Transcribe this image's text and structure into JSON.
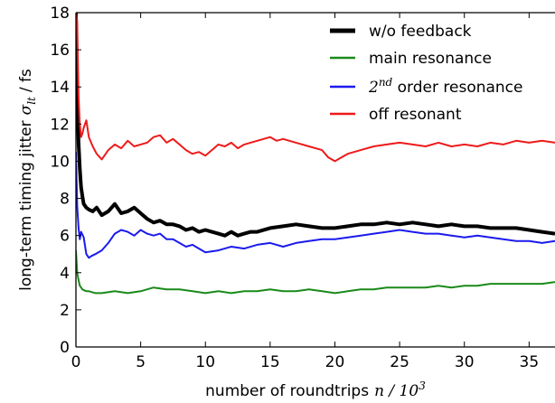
{
  "chart_data": {
    "type": "line",
    "xlabel": "number of roundtrips",
    "xlabel_math": "n / 10",
    "xlabel_exp": "3",
    "ylabel": "long-term timing jitter",
    "ylabel_math": "σ",
    "ylabel_sub": "lt",
    "ylabel_unit": "/ fs",
    "xlim": [
      0,
      37
    ],
    "ylim": [
      0,
      18
    ],
    "xticks": [
      0,
      5,
      10,
      15,
      20,
      25,
      30,
      35
    ],
    "yticks": [
      0,
      2,
      4,
      6,
      8,
      10,
      12,
      14,
      16,
      18
    ],
    "legend_position": "top-right",
    "series": [
      {
        "name": "w/o feedback",
        "color": "#000000",
        "width": 4,
        "x": [
          0,
          0.1,
          0.2,
          0.3,
          0.4,
          0.5,
          0.6,
          0.8,
          1.0,
          1.3,
          1.6,
          2,
          2.5,
          3,
          3.5,
          4,
          4.5,
          5,
          5.5,
          6,
          6.5,
          7,
          7.5,
          8,
          8.5,
          9,
          9.5,
          10,
          10.5,
          11,
          11.5,
          12,
          12.5,
          13,
          13.5,
          14,
          15,
          16,
          17,
          18,
          19,
          20,
          21,
          22,
          23,
          24,
          25,
          26,
          27,
          28,
          29,
          30,
          31,
          32,
          33,
          34,
          35,
          36,
          37
        ],
        "y": [
          18,
          13.5,
          11,
          9.6,
          8.6,
          8.1,
          7.7,
          7.5,
          7.4,
          7.3,
          7.5,
          7.1,
          7.3,
          7.7,
          7.2,
          7.3,
          7.5,
          7.2,
          6.9,
          6.7,
          6.8,
          6.6,
          6.6,
          6.5,
          6.3,
          6.4,
          6.2,
          6.3,
          6.2,
          6.1,
          6.0,
          6.2,
          6.0,
          6.1,
          6.2,
          6.2,
          6.4,
          6.5,
          6.6,
          6.5,
          6.4,
          6.4,
          6.5,
          6.6,
          6.6,
          6.7,
          6.6,
          6.7,
          6.6,
          6.5,
          6.6,
          6.5,
          6.5,
          6.4,
          6.4,
          6.4,
          6.3,
          6.2,
          6.1
        ]
      },
      {
        "name": "main resonance",
        "color": "#1a8a1a",
        "width": 2,
        "x": [
          0,
          0.1,
          0.2,
          0.3,
          0.5,
          0.8,
          1,
          1.5,
          2,
          3,
          4,
          5,
          6,
          7,
          8,
          9,
          10,
          11,
          12,
          13,
          14,
          15,
          16,
          17,
          18,
          19,
          20,
          21,
          22,
          23,
          24,
          25,
          26,
          27,
          28,
          29,
          30,
          31,
          32,
          33,
          34,
          35,
          36,
          37
        ],
        "y": [
          5.2,
          4.0,
          3.6,
          3.3,
          3.1,
          3.0,
          3.0,
          2.9,
          2.9,
          3.0,
          2.9,
          3.0,
          3.2,
          3.1,
          3.1,
          3.0,
          2.9,
          3.0,
          2.9,
          3.0,
          3.0,
          3.1,
          3.0,
          3.0,
          3.1,
          3.0,
          2.9,
          3.0,
          3.1,
          3.1,
          3.2,
          3.2,
          3.2,
          3.2,
          3.3,
          3.2,
          3.3,
          3.3,
          3.4,
          3.4,
          3.4,
          3.4,
          3.4,
          3.5
        ]
      },
      {
        "name": "2nd order resonance",
        "color": "#1a1aee",
        "width": 2,
        "x": [
          0,
          0.1,
          0.2,
          0.3,
          0.4,
          0.6,
          0.8,
          1.0,
          1.2,
          1.5,
          2,
          2.5,
          3,
          3.5,
          4,
          4.5,
          5,
          5.5,
          6,
          6.5,
          7,
          7.5,
          8,
          8.5,
          9,
          9.5,
          10,
          11,
          12,
          13,
          14,
          15,
          16,
          17,
          18,
          19,
          20,
          21,
          22,
          23,
          24,
          25,
          26,
          27,
          28,
          29,
          30,
          31,
          32,
          33,
          34,
          35,
          36,
          37
        ],
        "y": [
          10.5,
          7.6,
          6.4,
          5.8,
          6.2,
          5.9,
          5.0,
          4.8,
          4.9,
          5.0,
          5.2,
          5.6,
          6.1,
          6.3,
          6.2,
          6.0,
          6.3,
          6.1,
          6.0,
          6.1,
          5.8,
          5.8,
          5.6,
          5.4,
          5.5,
          5.3,
          5.1,
          5.2,
          5.4,
          5.3,
          5.5,
          5.6,
          5.4,
          5.6,
          5.7,
          5.8,
          5.8,
          5.9,
          6.0,
          6.1,
          6.2,
          6.3,
          6.2,
          6.1,
          6.1,
          6.0,
          5.9,
          6.0,
          5.9,
          5.8,
          5.7,
          5.7,
          5.6,
          5.7
        ]
      },
      {
        "name": "off resonant",
        "color": "#ee1a1a",
        "width": 2,
        "x": [
          0,
          0.1,
          0.2,
          0.3,
          0.4,
          0.5,
          0.6,
          0.8,
          1.0,
          1.3,
          1.6,
          2,
          2.5,
          3,
          3.5,
          4,
          4.5,
          5,
          5.5,
          6,
          6.5,
          7,
          7.5,
          8,
          8.5,
          9,
          9.5,
          10,
          10.5,
          11,
          11.5,
          12,
          12.5,
          13,
          14,
          15,
          15.5,
          16,
          17,
          18,
          19,
          19.5,
          20,
          20.5,
          21,
          22,
          23,
          24,
          25,
          26,
          27,
          28,
          29,
          30,
          31,
          32,
          33,
          34,
          35,
          36,
          37
        ],
        "y": [
          18,
          17.5,
          13.5,
          12.0,
          11.3,
          11.5,
          11.8,
          12.2,
          11.3,
          10.8,
          10.4,
          10.1,
          10.6,
          10.9,
          10.7,
          11.1,
          10.8,
          10.9,
          11.0,
          11.3,
          11.4,
          11.0,
          11.2,
          10.9,
          10.6,
          10.4,
          10.5,
          10.3,
          10.6,
          10.9,
          10.8,
          11.0,
          10.7,
          10.9,
          11.1,
          11.3,
          11.1,
          11.2,
          11.0,
          10.8,
          10.6,
          10.2,
          10.0,
          10.2,
          10.4,
          10.6,
          10.8,
          10.9,
          11.0,
          10.9,
          10.8,
          11.0,
          10.8,
          10.9,
          10.8,
          11.0,
          10.9,
          11.1,
          11.0,
          11.1,
          11.0
        ]
      }
    ]
  }
}
